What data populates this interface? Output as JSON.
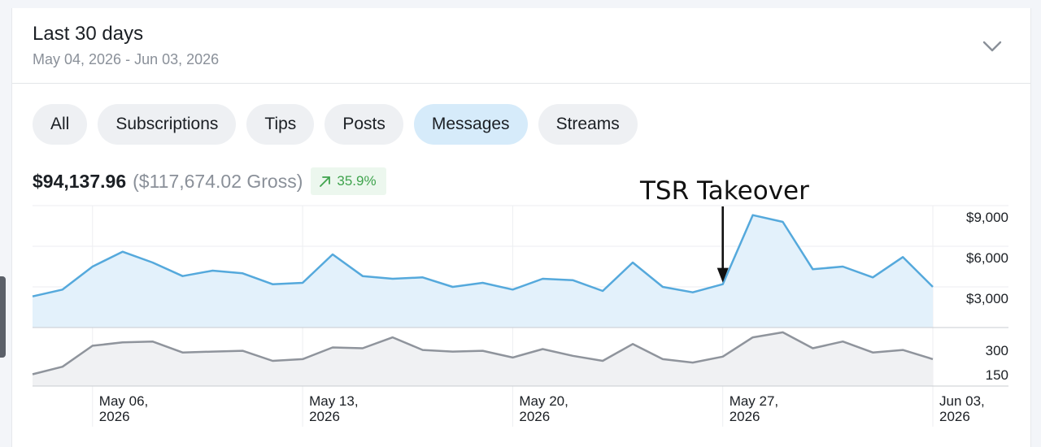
{
  "header": {
    "title": "Last 30 days",
    "range": "May 04, 2026 - Jun 03, 2026"
  },
  "filters": [
    {
      "label": "All",
      "active": false
    },
    {
      "label": "Subscriptions",
      "active": false
    },
    {
      "label": "Tips",
      "active": false
    },
    {
      "label": "Posts",
      "active": false
    },
    {
      "label": "Messages",
      "active": true
    },
    {
      "label": "Streams",
      "active": false
    }
  ],
  "summary": {
    "net": "$94,137.96",
    "gross": "($117,674.02 Gross)",
    "trend": "35.9%"
  },
  "annotation": "TSR Takeover",
  "colors": {
    "earnings_line": "#55a9dc",
    "earnings_fill": "#e3f1fb",
    "count_line": "#8f949c",
    "count_fill": "#f0f1f3",
    "active_pill": "#d6ebfa",
    "trend_green": "#3fa34d"
  },
  "chart_data": [
    {
      "type": "area",
      "series": [
        {
          "values": [
            2300,
            2800,
            4500,
            5600,
            4800,
            3800,
            4200,
            4000,
            3200,
            3300,
            5400,
            3800,
            3600,
            3700,
            3000,
            3300,
            2800,
            3600,
            3500,
            2700,
            4800,
            3000,
            2600,
            3200,
            8300,
            7800,
            4300,
            4500,
            3700,
            5200,
            3000
          ]
        }
      ],
      "x": [
        "May 04",
        "May 05",
        "May 06",
        "May 07",
        "May 08",
        "May 09",
        "May 10",
        "May 11",
        "May 12",
        "May 13",
        "May 14",
        "May 15",
        "May 16",
        "May 17",
        "May 18",
        "May 19",
        "May 20",
        "May 21",
        "May 22",
        "May 23",
        "May 24",
        "May 25",
        "May 26",
        "May 27",
        "May 28",
        "May 29",
        "May 30",
        "May 31",
        "Jun 01",
        "Jun 02",
        "Jun 03"
      ],
      "y_ticks": [
        "$9,000",
        "$6,000",
        "$3,000"
      ],
      "x_ticks": [
        {
          "month": "May 06,",
          "year": "2026"
        },
        {
          "month": "May 13,",
          "year": "2026"
        },
        {
          "month": "May 20,",
          "year": "2026"
        },
        {
          "month": "May 27,",
          "year": "2026"
        },
        {
          "month": "Jun 03,",
          "year": "2026"
        }
      ],
      "ylim": [
        0,
        9000
      ],
      "grid": true
    },
    {
      "type": "area",
      "series": [
        {
          "values": [
            70,
            115,
            240,
            260,
            265,
            200,
            205,
            210,
            150,
            160,
            230,
            225,
            290,
            215,
            205,
            210,
            170,
            220,
            180,
            150,
            250,
            160,
            140,
            175,
            290,
            320,
            225,
            265,
            200,
            215,
            160
          ]
        }
      ],
      "y_ticks": [
        "300",
        "150"
      ],
      "ylim": [
        0,
        350
      ],
      "grid": false
    }
  ]
}
